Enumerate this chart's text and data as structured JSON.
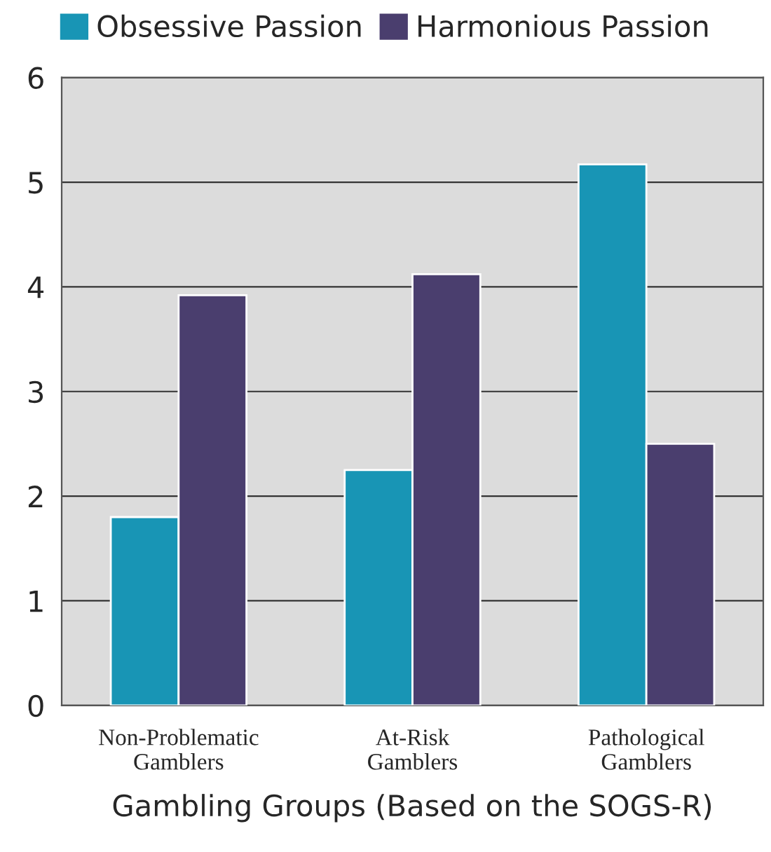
{
  "chart_data": {
    "type": "bar",
    "xlabel": "Gambling Groups (Based on the SOGS-R)",
    "categories": [
      "Non-Problematic\nGamblers",
      "At-Risk\nGamblers",
      "Pathological\nGamblers"
    ],
    "series": [
      {
        "name": "Obsessive Passion",
        "color": "#1895b5",
        "values": [
          1.8,
          2.25,
          5.17
        ]
      },
      {
        "name": "Harmonious Passion",
        "color": "#4a3e6e",
        "values": [
          3.92,
          4.12,
          2.5
        ]
      }
    ],
    "ylim": [
      0,
      6
    ],
    "yticks": [
      0,
      1,
      2,
      3,
      4,
      5,
      6
    ],
    "grid": "y",
    "legend": "top"
  }
}
